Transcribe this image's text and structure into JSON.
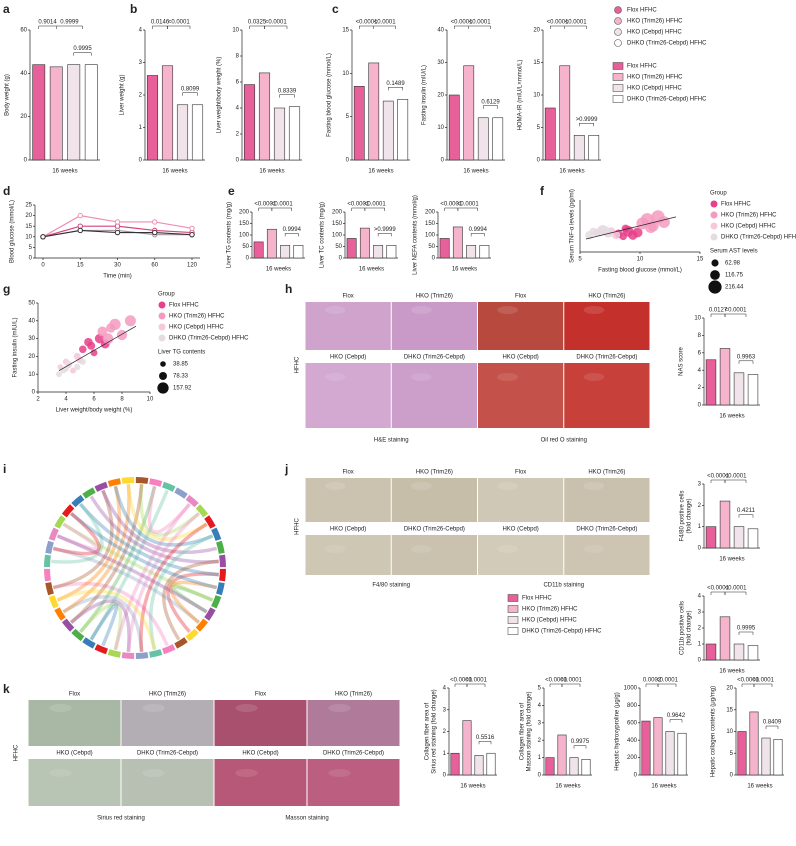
{
  "panel_labels": [
    "a",
    "b",
    "c",
    "d",
    "e",
    "f",
    "g",
    "h",
    "i",
    "j",
    "k"
  ],
  "groups": [
    {
      "name": "Flox HFHC",
      "color": "#e8609a"
    },
    {
      "name": "HKO (Trim26) HFHC",
      "color": "#f6b3cc"
    },
    {
      "name": "HKO (Cebpd) HFHC",
      "color": "#f0e4ea"
    },
    {
      "name": "DHKO (Trim26-Cebpd) HFHC",
      "color": "#ffffff"
    }
  ],
  "images": {
    "h": {
      "top": [
        "Flox",
        "HKO (Trim26)",
        "Flox",
        "HKO (Trim26)"
      ],
      "bottom": [
        "HKO (Cebpd)",
        "DHKO (Trim26-Cebpd)",
        "HKO (Cebpd)",
        "DHKO (Trim26-Cebpd)"
      ],
      "side": "HFHC",
      "captions": [
        "H&E staining",
        "Oil red O staining"
      ]
    },
    "j": {
      "top": [
        "Flox",
        "HKO (Trim26)",
        "Flox",
        "HKO (Trim26)"
      ],
      "bottom": [
        "HKO (Cebpd)",
        "DHKO (Trim26-Cebpd)",
        "HKO (Cebpd)",
        "DHKO (Trim26-Cebpd)"
      ],
      "side": "HFHC",
      "captions": [
        "F4/80 staining",
        "CD11b staining"
      ]
    },
    "k": {
      "top": [
        "Flox",
        "HKO (Trim26)",
        "Flox",
        "HKO (Trim26)"
      ],
      "bottom": [
        "HKO (Cebpd)",
        "DHKO (Trim26-Cebpd)",
        "HKO (Cebpd)",
        "DHKO (Trim26-Cebpd)"
      ],
      "side": "HFHC",
      "captions": [
        "Sirius red staining",
        "Masson staining"
      ]
    }
  },
  "chart_data": [
    {
      "type": "bar",
      "ylabel": "Body weight (g)",
      "xlabel": "16 weeks",
      "values": [
        44,
        43,
        44,
        44
      ],
      "ylim": [
        0,
        60
      ],
      "yticks": [
        0,
        20,
        40,
        60
      ],
      "annotations": [
        "0.9014",
        "0.9999",
        "0.9995"
      ]
    },
    {
      "type": "bar",
      "ylabel": "Liver weight (g)",
      "xlabel": "16 weeks",
      "values": [
        2.6,
        2.9,
        1.7,
        1.7
      ],
      "ylim": [
        0,
        4
      ],
      "yticks": [
        0,
        1,
        2,
        3,
        4
      ],
      "annotations": [
        "0.0146",
        "<0.0001",
        "0.8099"
      ]
    },
    {
      "type": "bar",
      "ylabel": "Liver weight/body weight (%)",
      "xlabel": "16 weeks",
      "values": [
        5.8,
        6.7,
        4.0,
        4.1
      ],
      "ylim": [
        0,
        10
      ],
      "yticks": [
        0,
        2,
        4,
        6,
        8,
        10
      ],
      "annotations": [
        "0.0325",
        "<0.0001",
        "0.8339"
      ]
    },
    {
      "type": "bar",
      "ylabel": "Fasting blood glucose (mmol/L)",
      "xlabel": "16 weeks",
      "values": [
        8.5,
        11.2,
        6.8,
        7.0
      ],
      "ylim": [
        0,
        15
      ],
      "yticks": [
        0,
        5,
        10,
        15
      ],
      "annotations": [
        "<0.0001",
        "<0.0001",
        "0.1489"
      ]
    },
    {
      "type": "bar",
      "ylabel": "Fasting insulin (mIU/L)",
      "xlabel": "16 weeks",
      "values": [
        20,
        29,
        13,
        13
      ],
      "ylim": [
        0,
        40
      ],
      "yticks": [
        0,
        10,
        20,
        30,
        40
      ],
      "annotations": [
        "<0.0001",
        "<0.0001",
        "0.6129"
      ]
    },
    {
      "type": "bar",
      "ylabel": "HOMA-IR (mIU/L×mmol/L)",
      "xlabel": "16 weeks",
      "values": [
        8,
        14.5,
        3.8,
        3.8
      ],
      "ylim": [
        0,
        20
      ],
      "yticks": [
        0,
        5,
        10,
        15,
        20
      ],
      "annotations": [
        "<0.0001",
        "<0.0001",
        ">0.9999"
      ]
    },
    {
      "type": "line",
      "ylabel": "Blood glucose (mmol/L)",
      "xlabel": "Time (min)",
      "categories": [
        "0",
        "15",
        "30",
        "60",
        "120"
      ],
      "ylim": [
        0,
        25
      ],
      "yticks": [
        0,
        5,
        10,
        15,
        20,
        25
      ],
      "series": [
        {
          "color": "#d9407e",
          "values": [
            10,
            15,
            15,
            13,
            12
          ]
        },
        {
          "color": "#f08db4",
          "values": [
            10,
            20,
            17,
            17,
            14
          ]
        },
        {
          "color": "#a8949e",
          "values": [
            10,
            13,
            13,
            11,
            11
          ]
        },
        {
          "color": "#333333",
          "values": [
            10,
            13,
            12,
            12,
            11
          ]
        }
      ]
    },
    {
      "type": "bar",
      "ylabel": "Liver TG contents (mg/g)",
      "xlabel": "16 weeks",
      "values": [
        70,
        125,
        55,
        55
      ],
      "ylim": [
        0,
        200
      ],
      "yticks": [
        0,
        50,
        100,
        150,
        200
      ],
      "annotations": [
        "<0.0001",
        "<0.0001",
        "0.9994"
      ]
    },
    {
      "type": "bar",
      "ylabel": "Liver TC contents (mg/g)",
      "xlabel": "16 weeks",
      "values": [
        85,
        130,
        55,
        55
      ],
      "ylim": [
        0,
        200
      ],
      "yticks": [
        0,
        50,
        100,
        150,
        200
      ],
      "annotations": [
        "<0.0001",
        "<0.0001",
        ">0.9999"
      ]
    },
    {
      "type": "bar",
      "ylabel": "Liver NEFA contents (mmol/g)",
      "xlabel": "16 weeks",
      "values": [
        85,
        135,
        55,
        55
      ],
      "ylim": [
        0,
        200
      ],
      "yticks": [
        0,
        50,
        100,
        150,
        200
      ],
      "annotations": [
        "<0.0001",
        "<0.0001",
        "0.9994"
      ]
    },
    {
      "type": "scatter",
      "ylabel": "Serum TNF-α levels (pg/ml)",
      "xlabel": "Fasting blood glucose (mmol/L)",
      "xlim": [
        5,
        15
      ],
      "xticks": [
        5,
        10,
        15
      ],
      "ylim": [
        0,
        40
      ],
      "legend_title": "Group",
      "size_title": "Serum AST levels",
      "size_legend": [
        62.98,
        116.75,
        216.44
      ],
      "series": [
        {
          "color": "#e8408a",
          "x": [
            8.2,
            8.6,
            9.0,
            9.4,
            8.8,
            9.8
          ],
          "values": [
            14,
            12,
            16,
            13,
            18,
            15
          ],
          "sizes": [
            90,
            70,
            140,
            110,
            80,
            120
          ]
        },
        {
          "color": "#f49ac0",
          "x": [
            10.2,
            10.6,
            11.1,
            11.5,
            12.0,
            10.9
          ],
          "values": [
            22,
            25,
            20,
            27,
            23,
            19
          ],
          "sizes": [
            180,
            200,
            150,
            216,
            170,
            160
          ]
        },
        {
          "color": "#f6c8da",
          "x": [
            6.4,
            7.0,
            7.3,
            6.8,
            7.6,
            8.0
          ],
          "values": [
            15,
            16,
            14,
            17,
            16,
            13
          ],
          "sizes": [
            70,
            80,
            65,
            90,
            75,
            85
          ]
        },
        {
          "color": "#e4dde0",
          "x": [
            6.1,
            6.6,
            7.1,
            7.4,
            6.9,
            5.8
          ],
          "values": [
            16,
            15,
            17,
            14,
            18,
            13
          ],
          "sizes": [
            63,
            75,
            80,
            70,
            68,
            90
          ]
        }
      ],
      "fit_line": {
        "x": [
          5.5,
          13
        ],
        "y": [
          10,
          27
        ]
      }
    },
    {
      "type": "scatter",
      "ylabel": "Fasting insulin (mIU/L)",
      "xlabel": "Liver weight/body weight (%)",
      "xlim": [
        2,
        10
      ],
      "xticks": [
        2,
        4,
        6,
        8,
        10
      ],
      "ylim": [
        0,
        50
      ],
      "yticks": [
        0,
        10,
        20,
        30,
        40,
        50
      ],
      "legend_title": "Group",
      "size_title": "Liver TG contents",
      "size_legend": [
        38.85,
        78.33,
        157.92
      ],
      "series": [
        {
          "color": "#e8408a",
          "x": [
            5.2,
            5.6,
            6.0,
            6.4,
            5.8,
            6.8
          ],
          "values": [
            24,
            28,
            22,
            30,
            26,
            27
          ],
          "sizes": [
            70,
            90,
            60,
            110,
            80,
            100
          ]
        },
        {
          "color": "#f49ac0",
          "x": [
            6.6,
            7.0,
            7.5,
            8.0,
            8.6,
            7.2
          ],
          "values": [
            34,
            30,
            38,
            32,
            40,
            36
          ],
          "sizes": [
            120,
            140,
            158,
            130,
            150,
            110
          ]
        },
        {
          "color": "#f6c8da",
          "x": [
            3.6,
            4.0,
            4.5,
            5.0,
            4.2,
            4.8
          ],
          "values": [
            14,
            17,
            12,
            18,
            15,
            20
          ],
          "sizes": [
            40,
            50,
            45,
            55,
            42,
            60
          ]
        },
        {
          "color": "#e4dde0",
          "x": [
            3.8,
            4.2,
            4.8,
            5.2,
            4.0,
            3.5
          ],
          "values": [
            12,
            16,
            14,
            17,
            13,
            10
          ],
          "sizes": [
            39,
            45,
            50,
            48,
            44,
            42
          ]
        }
      ],
      "fit_line": {
        "x": [
          3.5,
          9
        ],
        "y": [
          12,
          37
        ]
      }
    },
    {
      "type": "bar",
      "ylabel": "NAS score",
      "xlabel": "16 weeks",
      "values": [
        5.2,
        6.5,
        3.7,
        3.5
      ],
      "ylim": [
        0,
        10
      ],
      "yticks": [
        0,
        2,
        4,
        6,
        8,
        10
      ],
      "annotations": [
        "0.0127",
        "<0.0001",
        "0.9963"
      ]
    },
    {
      "type": "bar",
      "ylabel": [
        "F4/80 positive cells",
        "(fold change)"
      ],
      "xlabel": "16 weeks",
      "values": [
        1.0,
        2.2,
        1.0,
        0.9
      ],
      "ylim": [
        0,
        3
      ],
      "yticks": [
        0,
        1,
        2,
        3
      ],
      "annotations": [
        "<0.0001",
        "<0.0001",
        "0.4211"
      ]
    },
    {
      "type": "bar",
      "ylabel": [
        "CD11b positive cells",
        "(fold change)"
      ],
      "xlabel": "16 weeks",
      "values": [
        1.0,
        2.7,
        1.0,
        0.9
      ],
      "ylim": [
        0,
        4
      ],
      "yticks": [
        0,
        1,
        2,
        3,
        4
      ],
      "annotations": [
        "<0.0001",
        "<0.0001",
        "0.9995"
      ]
    },
    {
      "type": "bar",
      "ylabel": [
        "Collagen fiber area of",
        "Sirius red staining (fold change)"
      ],
      "xlabel": "16 weeks",
      "values": [
        1.0,
        2.5,
        0.9,
        1.0
      ],
      "ylim": [
        0,
        4
      ],
      "yticks": [
        0,
        1,
        2,
        3,
        4
      ],
      "annotations": [
        "<0.0001",
        "<0.0001",
        "0.5516"
      ]
    },
    {
      "type": "bar",
      "ylabel": [
        "Collagen fiber area of",
        "Masson staining (fold change)"
      ],
      "xlabel": "16 weeks",
      "values": [
        1.0,
        2.3,
        1.0,
        0.9
      ],
      "ylim": [
        0,
        5
      ],
      "yticks": [
        0,
        1,
        2,
        3,
        4,
        5
      ],
      "annotations": [
        "<0.0001",
        "<0.0001",
        "0.9975"
      ]
    },
    {
      "type": "bar",
      "ylabel": "Hepatic hydroxyproline (μg/g)",
      "xlabel": "16 weeks",
      "values": [
        620,
        660,
        500,
        480
      ],
      "ylim": [
        0,
        1000
      ],
      "yticks": [
        0,
        200,
        400,
        600,
        800,
        1000
      ],
      "annotations": [
        "0.0002",
        "<0.0001",
        "0.9642"
      ]
    },
    {
      "type": "bar",
      "ylabel": "Hepatic collagen contents (μg/mg)",
      "xlabel": "16 weeks",
      "values": [
        10,
        14.5,
        8.5,
        8.2
      ],
      "ylim": [
        0,
        20
      ],
      "yticks": [
        0,
        5,
        10,
        15,
        20
      ],
      "annotations": [
        "<0.0001",
        "<0.0001",
        "0.8409"
      ]
    }
  ]
}
